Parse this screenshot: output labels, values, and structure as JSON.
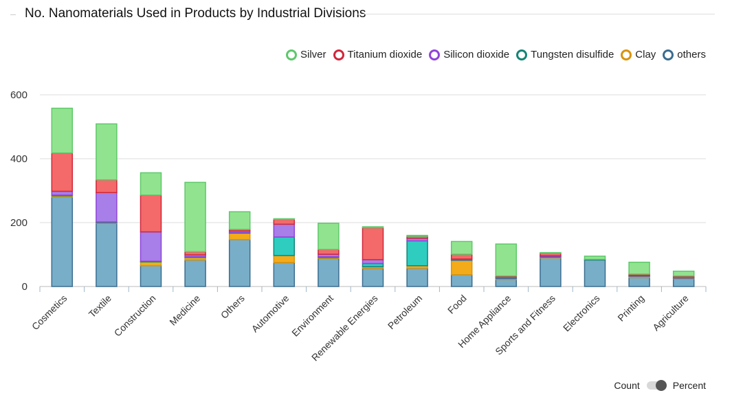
{
  "header": {
    "title": "No. Nanomaterials Used in Products by Industrial Divisions"
  },
  "toggle": {
    "left_label": "Count",
    "right_label": "Percent",
    "selected": "Count"
  },
  "legend": [
    {
      "label": "Silver",
      "color": "#5dc86a"
    },
    {
      "label": "Titanium dioxide",
      "color": "#d0263a"
    },
    {
      "label": "Silicon dioxide",
      "color": "#8e44d8"
    },
    {
      "label": "Tungsten disulfide",
      "color": "#138575"
    },
    {
      "label": "Clay",
      "color": "#d9930b"
    },
    {
      "label": "others",
      "color": "#3b6d8f"
    }
  ],
  "chart_data": {
    "type": "bar",
    "stacked": true,
    "title": "No. Nanomaterials Used in Products by Industrial Divisions",
    "xlabel": "",
    "ylabel": "",
    "ylim": [
      0,
      600
    ],
    "yticks": [
      0,
      200,
      400,
      600
    ],
    "grid": true,
    "legend_position": "top-right",
    "categories": [
      "Cosmetics",
      "Textile",
      "Construction",
      "Medicine",
      "Others",
      "Automotive",
      "Environment",
      "Renewable Energies",
      "Petroleum",
      "Food",
      "Home Appliance",
      "Sports and Fitness",
      "Electronics",
      "Printing",
      "Agriculture"
    ],
    "series": [
      {
        "name": "others",
        "fill": "#79aec9",
        "stroke": "#3b6d8f",
        "values": [
          280,
          198,
          65,
          83,
          147,
          75,
          88,
          57,
          57,
          37,
          22,
          90,
          83,
          28,
          24
        ]
      },
      {
        "name": "Clay",
        "fill": "#f4ab1a",
        "stroke": "#d9930b",
        "values": [
          4,
          2,
          12,
          8,
          20,
          22,
          3,
          5,
          8,
          45,
          3,
          2,
          0,
          4,
          2
        ]
      },
      {
        "name": "Tungsten disulfide",
        "fill": "#2ecdc0",
        "stroke": "#138575",
        "values": [
          2,
          2,
          2,
          2,
          2,
          58,
          2,
          10,
          78,
          2,
          2,
          2,
          2,
          1,
          1
        ]
      },
      {
        "name": "Silicon dioxide",
        "fill": "#a87ee8",
        "stroke": "#8e44d8",
        "values": [
          12,
          92,
          92,
          6,
          5,
          40,
          8,
          12,
          8,
          2,
          4,
          2,
          0,
          2,
          4
        ]
      },
      {
        "name": "Titanium dioxide",
        "fill": "#f46a6a",
        "stroke": "#d0263a",
        "values": [
          120,
          40,
          115,
          10,
          5,
          15,
          15,
          100,
          6,
          15,
          2,
          8,
          0,
          4,
          2
        ]
      },
      {
        "name": "Silver",
        "fill": "#92e38f",
        "stroke": "#5dc86a",
        "values": [
          140,
          175,
          70,
          217,
          55,
          2,
          82,
          3,
          3,
          40,
          100,
          2,
          10,
          37,
          15
        ]
      }
    ]
  }
}
